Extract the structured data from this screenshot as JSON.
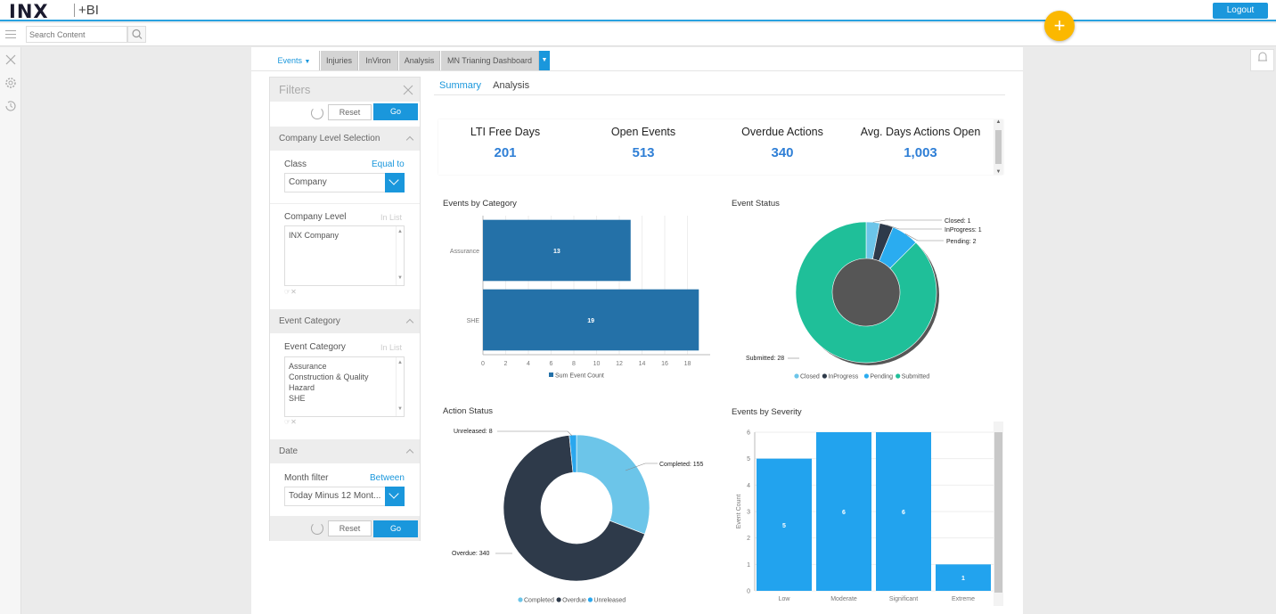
{
  "app": {
    "logo": "INX",
    "logo_suffix": "+BI",
    "logout": "Logout",
    "add_glyph": "+"
  },
  "search": {
    "placeholder": "Search Content"
  },
  "tabs": {
    "items": [
      "Events",
      "Injuries",
      "InViron",
      "Analysis",
      "MN Trianing Dashboard"
    ],
    "active": "Events"
  },
  "filters": {
    "title": "Filters",
    "reset": "Reset",
    "go": "Go",
    "company_level_section": "Company Level Selection",
    "class_label": "Class",
    "class_op": "Equal to",
    "class_value": "Company",
    "company_level_label": "Company Level",
    "company_level_op": "In List",
    "company_level_values": [
      "INX Company"
    ],
    "event_category_section": "Event Category",
    "event_category_label": "Event Category",
    "event_category_op": "In List",
    "event_category_values": [
      "Assurance",
      "Construction & Quality",
      "Hazard",
      "SHE"
    ],
    "date_section": "Date",
    "month_filter_label": "Month filter",
    "month_filter_op": "Between",
    "month_filter_value": "Today Minus 12 Mont..."
  },
  "subtabs": {
    "summary": "Summary",
    "analysis": "Analysis"
  },
  "kpis": [
    {
      "label": "LTI Free Days",
      "value": "201"
    },
    {
      "label": "Open Events",
      "value": "513"
    },
    {
      "label": "Overdue Actions",
      "value": "340"
    },
    {
      "label": "Avg. Days Actions Open",
      "value": "1,003"
    }
  ],
  "colors": {
    "accent": "#1a97dc",
    "bar_dark": "#2471a8",
    "bar_light": "#22a3ee",
    "closed": "#6cc5e9",
    "inprogress": "#2e3a4a",
    "pending": "#2aacf0",
    "submitted": "#1fbf99",
    "completed": "#6cc5e9",
    "overdue": "#2e3a4a",
    "unreleased": "#2aa7ee",
    "add_button": "#fbb800"
  },
  "chart_data": [
    {
      "type": "bar",
      "orientation": "horizontal",
      "title": "Events by Category",
      "categories": [
        "Assurance",
        "SHE"
      ],
      "series": [
        {
          "name": "Sum Event Count",
          "values": [
            13,
            19
          ]
        }
      ],
      "xlim": [
        0,
        20
      ],
      "xticks": [
        0,
        2,
        4,
        6,
        8,
        10,
        12,
        14,
        16,
        18
      ],
      "legend": "bottom"
    },
    {
      "type": "pie",
      "donut": true,
      "title": "Event Status",
      "labels": [
        "Closed",
        "InProgress",
        "Pending",
        "Submitted"
      ],
      "values": [
        1,
        1,
        2,
        28
      ],
      "callouts": [
        "Closed: 1",
        "InProgress: 1",
        "Pending: 2",
        "Submitted: 28"
      ],
      "legend": "bottom"
    },
    {
      "type": "pie",
      "donut": true,
      "title": "Action Status",
      "labels": [
        "Completed",
        "Overdue",
        "Unreleased"
      ],
      "values": [
        155,
        340,
        8
      ],
      "callouts": [
        "Completed: 155",
        "Overdue: 340",
        "Unreleased: 8"
      ],
      "legend": "bottom"
    },
    {
      "type": "bar",
      "title": "Events by Severity",
      "categories": [
        "Low",
        "Moderate",
        "Significant",
        "Extreme"
      ],
      "values": [
        5,
        6,
        6,
        1
      ],
      "ylabel": "Event Count",
      "ylim": [
        0,
        6
      ],
      "yticks": [
        0,
        1,
        2,
        3,
        4,
        5,
        6
      ]
    }
  ]
}
